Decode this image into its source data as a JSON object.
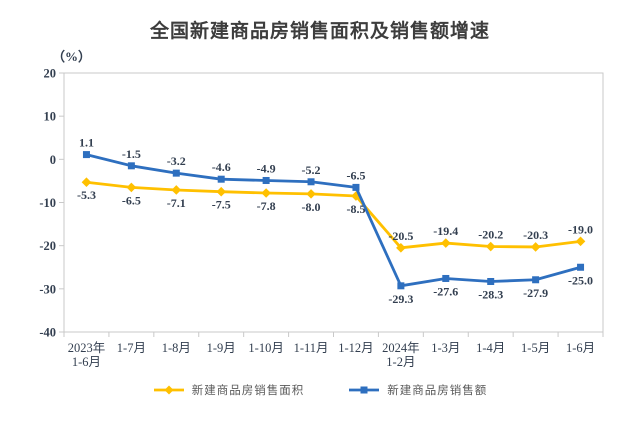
{
  "chart_data": {
    "type": "line",
    "title": "全国新建商品房销售面积及销售额增速",
    "unit_label": "（%）",
    "categories": [
      "2023年\n1-6月",
      "1-7月",
      "1-8月",
      "1-9月",
      "1-10月",
      "1-11月",
      "1-12月",
      "2024年\n1-2月",
      "1-3月",
      "1-4月",
      "1-5月",
      "1-6月"
    ],
    "series": [
      {
        "name": "新建商品房销售面积",
        "marker": "diamond",
        "color": "#FFC000",
        "values": [
          -5.3,
          -6.5,
          -7.1,
          -7.5,
          -7.8,
          -8.0,
          -8.5,
          -20.5,
          -19.4,
          -20.2,
          -20.3,
          -19.0
        ]
      },
      {
        "name": "新建商品房销售额",
        "marker": "square",
        "color": "#2E6FBF",
        "values": [
          1.1,
          -1.5,
          -3.2,
          -4.6,
          -4.9,
          -5.2,
          -6.5,
          -29.3,
          -27.6,
          -28.3,
          -27.9,
          -25.0
        ]
      }
    ],
    "ylim": [
      -40,
      20
    ],
    "ytick_step": 10,
    "yticks": [
      20,
      10,
      0,
      -10,
      -20,
      -30,
      -40
    ],
    "grid": false,
    "legend_position": "bottom",
    "colors": {
      "label_text": "#333F50",
      "axis_border": "#C9C9C9",
      "title_text": "#3D3D3D",
      "legend_text": "#595959"
    }
  }
}
